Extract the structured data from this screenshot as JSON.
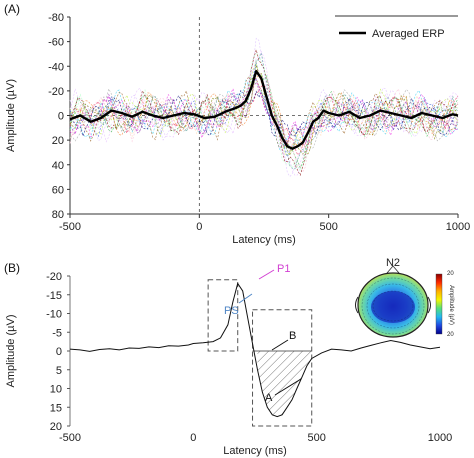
{
  "chart_data": [
    {
      "panel_label": "(A)",
      "type": "line",
      "xlabel": "Latency (ms)",
      "ylabel": "Amplitude (µV)",
      "xlim": [
        -500,
        1000
      ],
      "ylim": [
        -80,
        80
      ],
      "y_inverted": true,
      "x_ticks": [
        -500,
        0,
        500,
        1000
      ],
      "x_tick_labels": [
        "-500",
        "0",
        "500",
        "1000"
      ],
      "y_ticks": [
        -80,
        -60,
        -40,
        -20,
        0,
        20,
        40,
        60,
        80
      ],
      "y_tick_labels": [
        "-80",
        "-60",
        "-40",
        "-20",
        "0",
        "20",
        "40",
        "60",
        "80"
      ],
      "legend": {
        "position": "top-right",
        "entries": [
          "Averaged ERP"
        ]
      },
      "reference_lines": {
        "zero_latency": 0,
        "zero_amplitude": 0
      },
      "single_trial_colors": [
        "#e6194b",
        "#3cb44b",
        "#f58231",
        "#4363d8",
        "#911eb4",
        "#42d4f4",
        "#f032e6",
        "#bfef45",
        "#fabed4",
        "#469990",
        "#dcbeff",
        "#9a6324",
        "#800000",
        "#aaffc3",
        "#808000",
        "#ffd8b1",
        "#000075",
        "#a9a9a9",
        "#e6beff"
      ],
      "series": [
        {
          "name": "Averaged ERP",
          "x": [
            -500,
            -460,
            -420,
            -380,
            -340,
            -300,
            -260,
            -220,
            -180,
            -140,
            -100,
            -60,
            -20,
            20,
            60,
            100,
            140,
            160,
            180,
            200,
            220,
            240,
            260,
            280,
            300,
            320,
            340,
            360,
            380,
            400,
            420,
            440,
            460,
            480,
            500,
            540,
            580,
            620,
            660,
            700,
            740,
            780,
            820,
            860,
            900,
            940,
            980,
            1000
          ],
          "y": [
            3,
            0,
            5,
            2,
            -4,
            -2,
            1,
            -3,
            0,
            2,
            0,
            -2,
            -1,
            2,
            1,
            -3,
            -6,
            -8,
            -12,
            -22,
            -36,
            -30,
            -15,
            0,
            8,
            18,
            25,
            27,
            25,
            22,
            14,
            5,
            2,
            -4,
            -2,
            0,
            -3,
            2,
            0,
            -4,
            -2,
            0,
            2,
            -2,
            0,
            2,
            -1,
            0
          ]
        }
      ]
    },
    {
      "panel_label": "(B)",
      "type": "line",
      "xlabel": "Latency (ms)",
      "ylabel": "Amplitude (µV)",
      "xlim": [
        -500,
        1000
      ],
      "ylim": [
        -20,
        20
      ],
      "y_inverted": true,
      "x_ticks": [
        -500,
        0,
        500,
        1000
      ],
      "x_tick_labels": [
        "-500",
        "0",
        "500",
        "1000"
      ],
      "y_ticks": [
        -20,
        -15,
        -10,
        -5,
        0,
        5,
        10,
        15,
        20
      ],
      "y_tick_labels": [
        "-20",
        "-15",
        "-10",
        "-5",
        "0",
        "5",
        "10",
        "15",
        "20"
      ],
      "annotations": [
        "P1",
        "PS",
        "B",
        "A"
      ],
      "annotation_colors": {
        "P1": "#d23fd2",
        "PS": "#4f86c6",
        "B": "#111111",
        "A": "#111111"
      },
      "shaded_area": {
        "x_range": [
          240,
          480
        ],
        "y_range": [
          0,
          17
        ]
      },
      "dashed_boxes": [
        {
          "x_range": [
            60,
            180
          ],
          "y_range": [
            -19,
            0
          ]
        },
        {
          "x_range": [
            240,
            480
          ],
          "y_range": [
            -11,
            20
          ]
        }
      ],
      "series": [
        {
          "x": [
            -500,
            -460,
            -420,
            -380,
            -340,
            -300,
            -260,
            -220,
            -180,
            -140,
            -100,
            -60,
            -20,
            0,
            40,
            80,
            110,
            140,
            160,
            180,
            200,
            220,
            240,
            260,
            280,
            300,
            320,
            340,
            360,
            380,
            400,
            420,
            440,
            460,
            480,
            520,
            560,
            600,
            640,
            680,
            720,
            760,
            800,
            840,
            880,
            920,
            960,
            1000
          ],
          "y": [
            -0.5,
            -0.3,
            0.1,
            -0.4,
            -0.6,
            -0.3,
            -0.8,
            -0.7,
            -1.1,
            -0.9,
            -1.4,
            -1.3,
            -1.6,
            -2,
            -2.2,
            -2.5,
            -3.5,
            -7,
            -13,
            -18,
            -16,
            -9,
            -2,
            5,
            11,
            15,
            17,
            17.5,
            17,
            15,
            13,
            10,
            7,
            4,
            2,
            0.5,
            -0.5,
            -0.3,
            0,
            -0.8,
            -1.5,
            -2.2,
            -2.8,
            -2.3,
            -1.6,
            -1.1,
            -0.6,
            -1
          ]
        }
      ],
      "inset_topomap": {
        "title": "N2",
        "colorbar_label": "Amplitude (µV)",
        "colorbar_max": "20",
        "colorbar_min": "20",
        "colors": [
          "#8b0000",
          "#ff2a00",
          "#ffb000",
          "#f5f500",
          "#53e07a",
          "#22b7f0",
          "#1f48e0",
          "#00008b"
        ]
      }
    }
  ]
}
